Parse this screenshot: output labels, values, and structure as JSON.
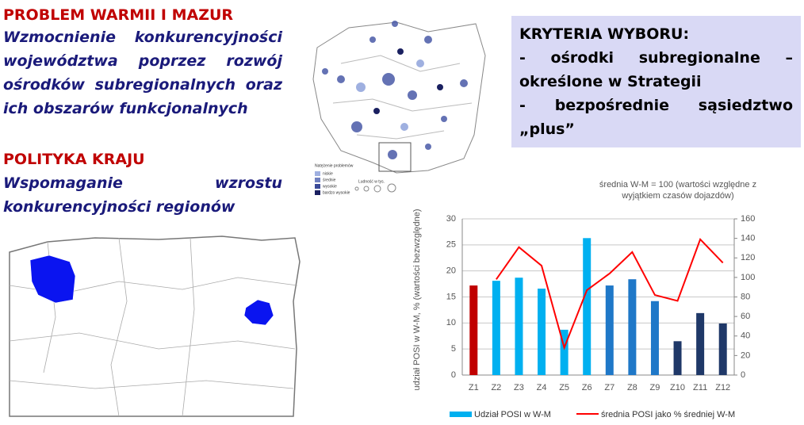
{
  "left": {
    "heading1": "PROBLEM WARMII I MAZUR",
    "text1": "Wzmocnienie konkurencyjności województwa poprzez rozwój ośrodków subregionalnych oraz ich obszarów funkcjonalnych",
    "heading2": "POLITYKA KRAJU",
    "text2": "Wspomaganie wzrostu konkurencyjności regionów"
  },
  "criteria": {
    "title": "KRYTERIA WYBORU:",
    "items": [
      "- ośrodki subregionalne – określone w Strategii",
      "- bezpośrednie sąsiedztwo „plus”"
    ]
  },
  "map_legend": {
    "title": "Natężenie problemów",
    "levels": [
      "niskie",
      "średnie",
      "wysokie",
      "bardzo wysokie"
    ],
    "population": "Ludność w tys."
  },
  "chart_data": {
    "type": "bar_line",
    "title": "średnia W-M = 100 (wartości względne z wyjątkiem czasów dojazdów)",
    "y_label": "udział POSI w W-M, % (wartości bezwzględne)",
    "categories": [
      "Z1",
      "Z2",
      "Z3",
      "Z4",
      "Z5",
      "Z6",
      "Z7",
      "Z8",
      "Z9",
      "Z10",
      "Z11",
      "Z12"
    ],
    "series": [
      {
        "name": "Udział POSI w W-M",
        "type": "bar",
        "color": "#00b0f0",
        "colors": [
          "#c00000",
          "#00b0f0",
          "#00b0f0",
          "#00b0f0",
          "#00b0f0",
          "#00b0f0",
          "#1f78c8",
          "#1f78c8",
          "#1f78c8",
          "#1f3868",
          "#1f3868",
          "#1f3868"
        ],
        "values": [
          17.2,
          18.1,
          18.7,
          16.6,
          8.7,
          26.3,
          17.2,
          18.4,
          14.2,
          6.5,
          11.9,
          9.9
        ]
      },
      {
        "name": "średnia POSI jako % średniej W-M",
        "type": "line",
        "color": "#ff0000",
        "axis": "y2",
        "values": [
          null,
          98,
          131,
          112,
          28,
          87,
          104,
          126,
          82,
          76,
          139,
          115
        ]
      }
    ],
    "ylim": [
      0,
      30
    ],
    "yticks": [
      0,
      5,
      10,
      15,
      20,
      25,
      30
    ],
    "y2lim": [
      0,
      160
    ],
    "y2ticks": [
      0,
      20,
      40,
      60,
      80,
      100,
      120,
      140,
      160
    ],
    "grid": true
  }
}
